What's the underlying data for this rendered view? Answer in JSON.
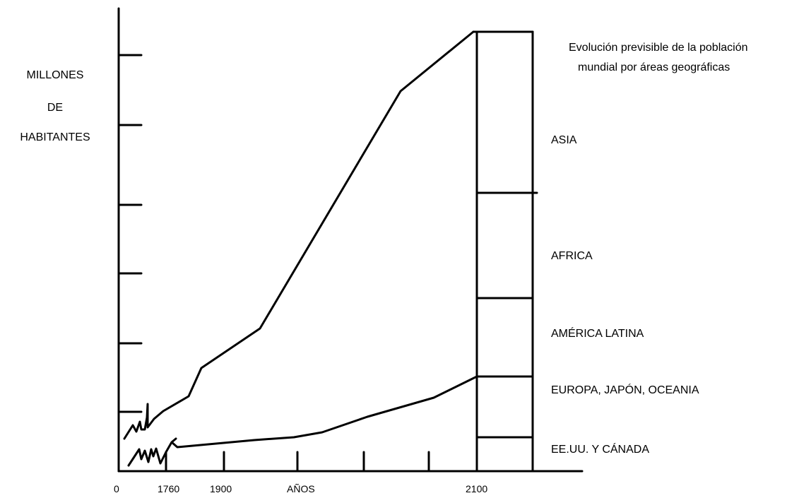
{
  "chart_data": {
    "type": "line",
    "title": "Evolución previsible de la población",
    "subtitle": "mundial por áreas geográficas",
    "ylabel": [
      "MILLONES",
      "DE",
      "HABITANTES"
    ],
    "xlabel": "AÑOS",
    "x_tick_labels": [
      "0",
      "1760",
      "1900",
      "2100"
    ],
    "regions": [
      "ASIA",
      "AFRICA",
      "AMÉRICA LATINA",
      "EUROPA, JAPÓN, OCEANIA",
      "EE.UU.  Y CÁNADA"
    ],
    "grid": false,
    "legend": "right",
    "series": [
      {
        "values": [
          [
            2,
            37
          ],
          [
            8,
            50
          ],
          [
            12,
            38
          ],
          [
            14,
            58
          ],
          [
            14.5,
            44
          ],
          [
            22,
            60
          ],
          [
            30,
            70
          ],
          [
            35,
            98
          ],
          [
            60,
            125
          ],
          [
            120,
            205
          ],
          [
            165,
            285
          ],
          [
            190,
            300
          ],
          [
            216,
            328
          ]
        ]
      },
      {
        "values": [
          [
            4,
            2
          ],
          [
            10,
            14
          ],
          [
            12,
            4
          ],
          [
            16,
            14
          ],
          [
            18,
            6
          ],
          [
            20,
            15
          ],
          [
            22,
            9
          ],
          [
            25,
            16
          ],
          [
            28,
            5
          ],
          [
            32,
            12
          ],
          [
            25,
            16
          ],
          [
            35,
            9
          ],
          [
            80,
            14
          ],
          [
            130,
            18
          ],
          [
            170,
            27
          ],
          [
            190,
            31
          ],
          [
            210,
            37
          ],
          [
            240,
            44
          ],
          [
            270,
            49
          ],
          [
            300,
            55
          ]
        ]
      }
    ]
  }
}
